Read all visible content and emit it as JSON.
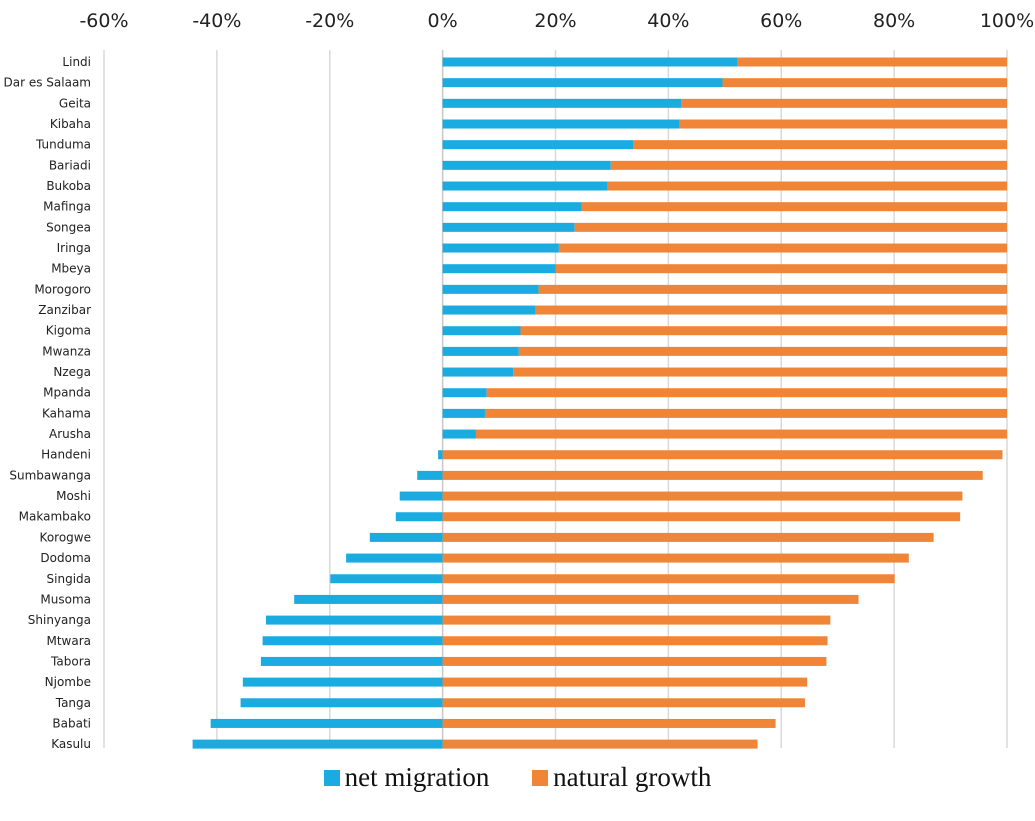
{
  "chart_data": {
    "type": "bar",
    "orientation": "horizontal",
    "stacked": true,
    "xlim": [
      -60,
      100
    ],
    "xticks": [
      "-60%",
      "-40%",
      "-20%",
      "0%",
      "20%",
      "40%",
      "60%",
      "80%",
      "100%"
    ],
    "xtick_values": [
      -60,
      -40,
      -20,
      0,
      20,
      40,
      60,
      80,
      100
    ],
    "grid": true,
    "legend_position": "bottom",
    "categories": [
      "Lindi",
      "Dar es Salaam",
      "Geita",
      "Kibaha",
      "Tunduma",
      "Bariadi",
      "Bukoba",
      "Mafinga",
      "Songea",
      "Iringa",
      "Mbeya",
      "Morogoro",
      "Zanzibar",
      "Kigoma",
      "Mwanza",
      "Nzega",
      "Mpanda",
      "Kahama",
      "Arusha",
      "Handeni",
      "Sumbawanga",
      "Moshi",
      "Makambako",
      "Korogwe",
      "Dodoma",
      "Singida",
      "Musoma",
      "Shinyanga",
      "Mtwara",
      "Tabora",
      "Njombe",
      "Tanga",
      "Babati",
      "Kasulu"
    ],
    "series": [
      {
        "name": "net migration",
        "color": "#1aabe0",
        "values": [
          52.3,
          49.6,
          42.3,
          42.0,
          33.8,
          29.8,
          29.2,
          24.6,
          23.4,
          20.6,
          20.0,
          17.0,
          16.5,
          13.8,
          13.5,
          12.5,
          7.8,
          7.5,
          5.9,
          -0.8,
          -4.5,
          -7.6,
          -8.3,
          -12.9,
          -17.1,
          -19.9,
          -26.3,
          -31.3,
          -31.9,
          -32.2,
          -35.4,
          -35.8,
          -41.1,
          -44.3
        ]
      },
      {
        "name": "natural growth",
        "color": "#f08537",
        "values": [
          47.7,
          50.4,
          57.7,
          58.0,
          66.2,
          70.2,
          70.8,
          75.4,
          76.6,
          79.4,
          80.0,
          83.0,
          83.5,
          86.2,
          86.5,
          87.5,
          92.2,
          92.5,
          94.1,
          99.2,
          95.7,
          92.1,
          91.7,
          87.0,
          82.6,
          80.1,
          73.7,
          68.7,
          68.2,
          68.0,
          64.6,
          64.2,
          59.0,
          55.8
        ]
      }
    ]
  }
}
